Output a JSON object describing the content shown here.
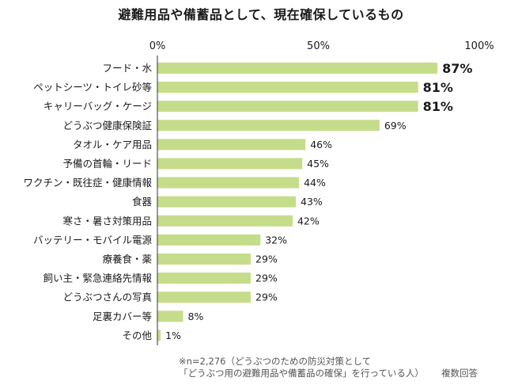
{
  "colors": {
    "bar": "#c5dd8a",
    "axis": "#333333",
    "text": "#1a1a1a"
  },
  "footnote": {
    "line1": "※n=2,276（どうぶつのための防災対策として",
    "line2": "「どうぶつ用の避難用品や備蓄品の確保」を行っている人）",
    "note": "複数回答"
  },
  "chart_data": {
    "type": "bar",
    "orientation": "horizontal",
    "title": "避難用品や備蓄品として、現在確保しているもの",
    "xlim": [
      0,
      100
    ],
    "x_ticks": [
      "0%",
      "50%",
      "100%"
    ],
    "legend": "none",
    "grid": false,
    "categories": [
      "フード・水",
      "ペットシーツ・トイレ砂等",
      "キャリーバッグ・ケージ",
      "どうぶつ健康保険証",
      "タオル・ケア用品",
      "予備の首輪・リード",
      "ワクチン・既往症・健康情報",
      "食器",
      "寒さ・暑さ対策用品",
      "バッテリー・モバイル電源",
      "療養食・薬",
      "飼い主・緊急連絡先情報",
      "どうぶつさんの写真",
      "足裏カバー等",
      "その他"
    ],
    "values": [
      87,
      81,
      81,
      69,
      46,
      45,
      44,
      43,
      42,
      32,
      29,
      29,
      29,
      8,
      1
    ],
    "value_labels": [
      "87%",
      "81%",
      "81%",
      "69%",
      "46%",
      "45%",
      "44%",
      "43%",
      "42%",
      "32%",
      "29%",
      "29%",
      "29%",
      "8%",
      "1%"
    ],
    "highlighted": [
      true,
      true,
      true,
      false,
      false,
      false,
      false,
      false,
      false,
      false,
      false,
      false,
      false,
      false,
      false
    ]
  }
}
